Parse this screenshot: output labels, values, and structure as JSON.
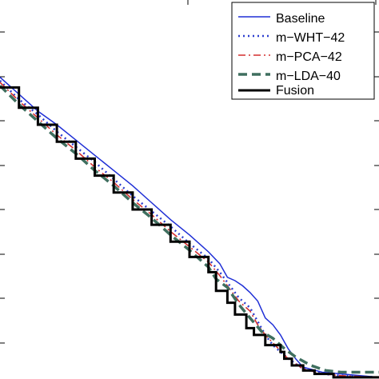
{
  "chart_data": {
    "type": "line",
    "title": "",
    "xlabel": "",
    "ylabel": "",
    "xlim": [
      0,
      100
    ],
    "ylim": [
      0,
      100
    ],
    "grid": false,
    "legend": "top-right",
    "series": [
      {
        "name": "Baseline",
        "color": "#1f2fd6",
        "dash": "solid",
        "step": false,
        "points": [
          [
            0,
            89
          ],
          [
            5,
            84
          ],
          [
            10,
            79
          ],
          [
            15,
            75
          ],
          [
            20,
            70.5
          ],
          [
            25,
            66
          ],
          [
            30,
            61.5
          ],
          [
            35,
            57
          ],
          [
            40,
            52
          ],
          [
            45,
            47
          ],
          [
            50,
            42.5
          ],
          [
            55,
            37.5
          ],
          [
            58,
            34
          ],
          [
            60,
            30
          ],
          [
            62,
            29
          ],
          [
            64,
            27.5
          ],
          [
            66,
            25.5
          ],
          [
            68,
            23
          ],
          [
            70,
            18
          ],
          [
            72,
            16
          ],
          [
            74,
            13
          ],
          [
            76,
            9
          ],
          [
            78,
            6
          ],
          [
            80,
            3.5
          ],
          [
            85,
            2
          ],
          [
            90,
            1.5
          ],
          [
            95,
            1
          ],
          [
            100,
            0.5
          ]
        ]
      },
      {
        "name": "m−WHT−42",
        "color": "#2d3fcf",
        "dash": "dotted",
        "step": false,
        "points": [
          [
            0,
            88
          ],
          [
            5,
            82.5
          ],
          [
            10,
            78
          ],
          [
            15,
            73
          ],
          [
            20,
            68.5
          ],
          [
            25,
            64
          ],
          [
            30,
            59
          ],
          [
            35,
            54
          ],
          [
            40,
            49.5
          ],
          [
            45,
            45
          ],
          [
            50,
            40
          ],
          [
            55,
            35.5
          ],
          [
            58,
            31.5
          ],
          [
            60,
            28.5
          ],
          [
            63,
            24
          ],
          [
            66,
            21
          ],
          [
            68,
            17
          ],
          [
            70,
            13
          ],
          [
            72,
            10
          ],
          [
            75,
            7
          ],
          [
            78,
            4.5
          ],
          [
            80,
            3
          ],
          [
            85,
            1.5
          ],
          [
            90,
            1
          ],
          [
            100,
            0.5
          ]
        ]
      },
      {
        "name": "m−PCA−42",
        "color": "#d32f2f",
        "dash": "dashdot",
        "step": false,
        "points": [
          [
            0,
            87.5
          ],
          [
            5,
            82
          ],
          [
            10,
            77
          ],
          [
            15,
            72
          ],
          [
            20,
            67.5
          ],
          [
            25,
            62.5
          ],
          [
            30,
            58
          ],
          [
            35,
            53
          ],
          [
            40,
            48.5
          ],
          [
            45,
            43.5
          ],
          [
            50,
            39
          ],
          [
            55,
            34.5
          ],
          [
            58,
            30.5
          ],
          [
            60,
            27.5
          ],
          [
            63,
            23
          ],
          [
            66,
            20
          ],
          [
            68,
            16
          ],
          [
            70,
            13
          ],
          [
            73,
            9.5
          ],
          [
            76,
            6
          ],
          [
            80,
            3
          ],
          [
            85,
            1.5
          ],
          [
            90,
            1
          ],
          [
            100,
            0.5
          ]
        ]
      },
      {
        "name": "m−LDA−40",
        "color": "#3f6f5f",
        "dash": "dashed",
        "step": false,
        "points": [
          [
            0,
            86.5
          ],
          [
            5,
            81
          ],
          [
            10,
            76
          ],
          [
            15,
            71
          ],
          [
            20,
            66.5
          ],
          [
            25,
            61.5
          ],
          [
            30,
            57
          ],
          [
            35,
            52
          ],
          [
            40,
            47.5
          ],
          [
            45,
            42.5
          ],
          [
            50,
            38
          ],
          [
            55,
            33
          ],
          [
            57,
            29.5
          ],
          [
            60,
            27
          ],
          [
            63,
            22
          ],
          [
            66,
            18
          ],
          [
            69,
            14
          ],
          [
            72,
            12
          ],
          [
            75,
            9
          ],
          [
            78,
            6.5
          ],
          [
            82,
            4
          ],
          [
            86,
            2.5
          ],
          [
            90,
            2
          ],
          [
            95,
            2
          ],
          [
            100,
            2
          ]
        ]
      },
      {
        "name": "Fusion",
        "color": "#000000",
        "dash": "solid",
        "step": true,
        "points": [
          [
            0,
            86
          ],
          [
            5,
            80
          ],
          [
            10,
            75
          ],
          [
            15,
            70
          ],
          [
            20,
            65
          ],
          [
            25,
            60
          ],
          [
            30,
            55
          ],
          [
            35,
            50
          ],
          [
            40,
            45.5
          ],
          [
            45,
            40.5
          ],
          [
            50,
            36
          ],
          [
            55,
            31.5
          ],
          [
            57,
            26
          ],
          [
            60,
            22.5
          ],
          [
            62,
            19
          ],
          [
            65,
            15
          ],
          [
            67,
            13
          ],
          [
            70,
            10
          ],
          [
            74,
            8
          ],
          [
            75,
            6
          ],
          [
            77,
            4
          ],
          [
            80,
            2.5
          ],
          [
            83,
            1.5
          ],
          [
            86,
            1.5
          ],
          [
            88,
            0.5
          ],
          [
            100,
            0.5
          ]
        ]
      }
    ]
  }
}
